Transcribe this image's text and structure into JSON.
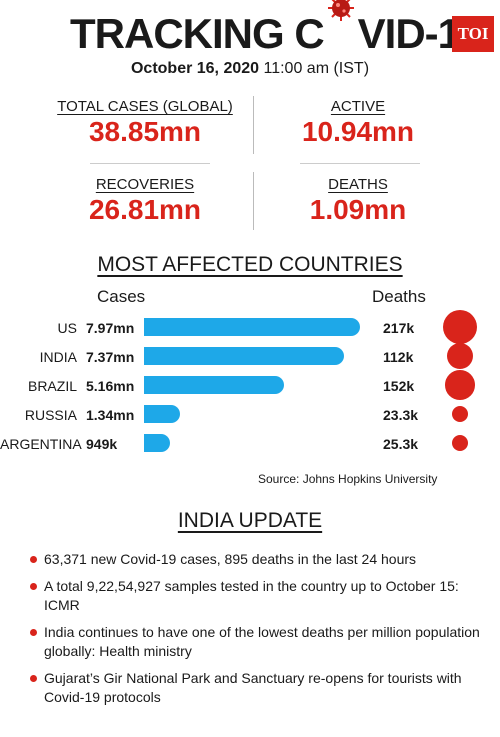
{
  "header": {
    "title_part1": "TRACKING C",
    "title_part2": "VID-19",
    "logo": "TOI",
    "date": "October 16, 2020",
    "time": "11:00 am (IST)"
  },
  "stats": [
    {
      "label": "TOTAL CASES (GLOBAL)",
      "value": "38.85mn"
    },
    {
      "label": "ACTIVE",
      "value": "10.94mn"
    },
    {
      "label": "RECOVERIES",
      "value": "26.81mn"
    },
    {
      "label": "DEATHS",
      "value": "1.09mn"
    }
  ],
  "chart_section": {
    "title": "MOST AFFECTED COUNTRIES",
    "cases_header": "Cases",
    "deaths_header": "Deaths",
    "source": "Source: Johns Hopkins University"
  },
  "chart_data": {
    "type": "bar",
    "categories": [
      "US",
      "INDIA",
      "BRAZIL",
      "RUSSIA",
      "ARGENTINA"
    ],
    "series": [
      {
        "name": "Cases",
        "values": [
          7.97,
          7.37,
          5.16,
          1.34,
          0.949
        ],
        "labels": [
          "7.97mn",
          "7.37mn",
          "5.16mn",
          "1.34mn",
          "949k"
        ],
        "color": "#1ea8e8"
      },
      {
        "name": "Deaths",
        "values": [
          217,
          112,
          152,
          23.3,
          25.3
        ],
        "labels": [
          "217k",
          "112k",
          "152k",
          "23.3k",
          "25.3k"
        ],
        "color": "#d9241b"
      }
    ],
    "legend": "none",
    "grid": false
  },
  "india_update": {
    "title": "INDIA UPDATE",
    "items": [
      "63,371 new Covid-19 cases, 895 deaths in the last 24 hours",
      "A total 9,22,54,927 samples tested in the country up to October 15: ICMR",
      "India continues to have one of the lowest deaths per million population globally: Health ministry",
      "Gujarat’s Gir National Park and Sanctuary re-opens for tourists with Covid-19 protocols"
    ]
  },
  "colors": {
    "accent_red": "#d9241b",
    "bar_blue": "#1ea8e8"
  }
}
